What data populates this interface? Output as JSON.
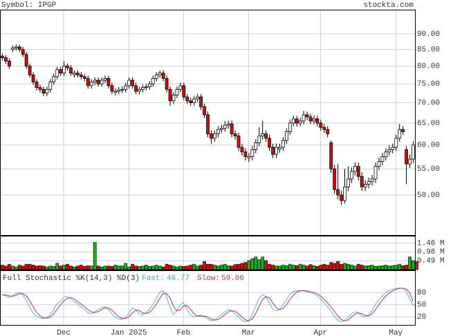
{
  "header": {
    "symbol": "Symbol: IPGP",
    "site": "stockta.com"
  },
  "chart_data": [
    {
      "type": "candlestick",
      "ylog": true,
      "grid": true,
      "up_color": "#ffffff",
      "down_color": "#cc1111",
      "ylim": [
        43.2,
        98.3
      ],
      "yticks": [
        {
          "value": 50,
          "label": "50.00"
        },
        {
          "value": 55,
          "label": "55.00"
        },
        {
          "value": 60,
          "label": "60.00"
        },
        {
          "value": 65,
          "label": "65.00"
        },
        {
          "value": 70,
          "label": "70.00"
        },
        {
          "value": 75,
          "label": "75.00"
        },
        {
          "value": 80,
          "label": "80.00"
        },
        {
          "value": 85,
          "label": "85.00"
        },
        {
          "value": 90,
          "label": "90.00"
        }
      ],
      "candles": [
        [
          83,
          83.8,
          81.7,
          82.5
        ],
        [
          82.5,
          83.3,
          80.7,
          81.5
        ],
        [
          81.5,
          82.3,
          79.2,
          80
        ],
        [
          85,
          86.3,
          84.2,
          85.5
        ],
        [
          85.5,
          86.6,
          84.7,
          85.8
        ],
        [
          85.8,
          86.6,
          84.2,
          85
        ],
        [
          85,
          85.8,
          82.7,
          83.5
        ],
        [
          83.5,
          84.3,
          79.2,
          80
        ],
        [
          80,
          80.8,
          76.7,
          77.5
        ],
        [
          77.5,
          78.3,
          74.7,
          75.5
        ],
        [
          75.5,
          76.3,
          73.2,
          74
        ],
        [
          74,
          74.8,
          72.7,
          73.5
        ],
        [
          73.5,
          74.3,
          71.7,
          72.5
        ],
        [
          72.5,
          74.3,
          71.7,
          73.5
        ],
        [
          73.5,
          76.3,
          72.7,
          75.5
        ],
        [
          75.5,
          77.8,
          74.7,
          77
        ],
        [
          77,
          79.8,
          76.2,
          79
        ],
        [
          79,
          79.8,
          77.2,
          78
        ],
        [
          78,
          81.5,
          77.2,
          80
        ],
        [
          80,
          80.8,
          78.7,
          79.5
        ],
        [
          79.5,
          80.3,
          77.2,
          78
        ],
        [
          77.6,
          78.8,
          76.8,
          78
        ],
        [
          78,
          78.8,
          76.7,
          77.5
        ],
        [
          77.5,
          78.3,
          76.2,
          77
        ],
        [
          77,
          77.8,
          75.7,
          76.5
        ],
        [
          76.5,
          77.3,
          73.7,
          74.5
        ],
        [
          74.5,
          76.3,
          73.7,
          75.5
        ],
        [
          75.5,
          76.8,
          74.7,
          76
        ],
        [
          76,
          76.8,
          74.2,
          75
        ],
        [
          75,
          76.8,
          74.2,
          76
        ],
        [
          76,
          77.3,
          75.2,
          76.5
        ],
        [
          76.5,
          77.3,
          73.7,
          74.5
        ],
        [
          74.5,
          75.3,
          72.2,
          73
        ],
        [
          72.7,
          73.8,
          71.9,
          73
        ],
        [
          73,
          74.1,
          72.2,
          73.3
        ],
        [
          73.3,
          74.3,
          72.5,
          73.5
        ],
        [
          73.5,
          75.3,
          72.7,
          74.5
        ],
        [
          74.5,
          76.8,
          73.7,
          76
        ],
        [
          76,
          76.8,
          73.7,
          74.5
        ],
        [
          74.5,
          75.3,
          72.2,
          73
        ],
        [
          73,
          74.3,
          72.2,
          73.5
        ],
        [
          73.5,
          74.8,
          72.7,
          74
        ],
        [
          74,
          75,
          73.2,
          74.2
        ],
        [
          74.2,
          75.8,
          73.4,
          75
        ],
        [
          75,
          77.3,
          74.2,
          76.5
        ],
        [
          76.5,
          78.3,
          75.7,
          77.5
        ],
        [
          77.5,
          78.8,
          76.7,
          78
        ],
        [
          78,
          78.8,
          75.7,
          76.5
        ],
        [
          76.5,
          77.3,
          72.7,
          73.5
        ],
        [
          73.5,
          74.3,
          69.2,
          70.5
        ],
        [
          70.5,
          72.8,
          69.7,
          72
        ],
        [
          72,
          74.3,
          71.2,
          73.5
        ],
        [
          73.5,
          75.3,
          72.7,
          74.5
        ],
        [
          74.5,
          75.3,
          70.7,
          71.5
        ],
        [
          71.5,
          72.3,
          69.7,
          70.5
        ],
        [
          70.5,
          71.3,
          69.2,
          70
        ],
        [
          70,
          71.8,
          69.2,
          71
        ],
        [
          71,
          72.3,
          70.2,
          71.5
        ],
        [
          71.5,
          72.3,
          68.2,
          69
        ],
        [
          69,
          69.8,
          66.2,
          67
        ],
        [
          67,
          67.8,
          61.7,
          62.5
        ],
        [
          62.5,
          63.3,
          60.2,
          61.5
        ],
        [
          61.5,
          63.3,
          60.7,
          62.5
        ],
        [
          62.5,
          64.3,
          61.7,
          63.5
        ],
        [
          63.5,
          64.6,
          62.7,
          63.8
        ],
        [
          63.8,
          65.5,
          63,
          64.5
        ],
        [
          64.5,
          65.6,
          63.7,
          64.8
        ],
        [
          64.8,
          65.6,
          61.7,
          62.5
        ],
        [
          62.5,
          63.3,
          61.2,
          62
        ],
        [
          62,
          62.8,
          58.7,
          59.5
        ],
        [
          59.5,
          60.3,
          57.7,
          58.5
        ],
        [
          58.5,
          59.3,
          56.7,
          57.5
        ],
        [
          57.2,
          58.3,
          56.4,
          57.5
        ],
        [
          57.5,
          59.8,
          56.7,
          59
        ],
        [
          59,
          61.3,
          58.2,
          60.5
        ],
        [
          60.5,
          64,
          59.7,
          62
        ],
        [
          62,
          65.5,
          61.2,
          62.5
        ],
        [
          62.5,
          63.3,
          60.7,
          61.5
        ],
        [
          61.5,
          62.3,
          58.7,
          59.5
        ],
        [
          59.5,
          60.3,
          57.2,
          58
        ],
        [
          58,
          60.3,
          57.2,
          59.5
        ],
        [
          59.1,
          60.3,
          58.3,
          59.5
        ],
        [
          59.5,
          61.8,
          58.7,
          61
        ],
        [
          61,
          63.8,
          60.2,
          63
        ],
        [
          63,
          65.8,
          62.2,
          65
        ],
        [
          65,
          66.8,
          64.2,
          66
        ],
        [
          66,
          66.8,
          64.2,
          65
        ],
        [
          65,
          66.3,
          64.2,
          65.5
        ],
        [
          65.5,
          68,
          64.7,
          67
        ],
        [
          67,
          67.8,
          65.7,
          66.5
        ],
        [
          66.5,
          67.3,
          64.7,
          65.5
        ],
        [
          65.5,
          66.8,
          64.7,
          66
        ],
        [
          66,
          66.8,
          64.2,
          65
        ],
        [
          65,
          65.8,
          63.2,
          64
        ],
        [
          64,
          64.8,
          62.7,
          63.5
        ],
        [
          63.5,
          64.3,
          61.7,
          62.5
        ],
        [
          60.5,
          61,
          54.2,
          55
        ],
        [
          55,
          55.8,
          50.2,
          51
        ],
        [
          51,
          56,
          49.2,
          50
        ],
        [
          50,
          50.8,
          48.2,
          49
        ],
        [
          49,
          55,
          48.5,
          51.5
        ],
        [
          51.5,
          55.5,
          50.7,
          53
        ],
        [
          53,
          55.3,
          52.2,
          54.5
        ],
        [
          54.5,
          56.3,
          53.7,
          55.5
        ],
        [
          55.5,
          56.3,
          52.7,
          53.5
        ],
        [
          53.5,
          54.3,
          50.7,
          51.5
        ],
        [
          51.5,
          52.8,
          50.7,
          52
        ],
        [
          52,
          53.3,
          51.2,
          52.5
        ],
        [
          52.5,
          53.8,
          51.7,
          53
        ],
        [
          53,
          56.3,
          52.2,
          55.5
        ],
        [
          55.5,
          57.3,
          54.7,
          56.5
        ],
        [
          56.5,
          58.3,
          55.7,
          57.5
        ],
        [
          57.5,
          59.3,
          56.7,
          58.5
        ],
        [
          58.5,
          60,
          57.7,
          59
        ],
        [
          59,
          60.3,
          58.2,
          59.5
        ],
        [
          59.5,
          62.3,
          58.7,
          61.5
        ],
        [
          61.5,
          64.8,
          60.7,
          63.5
        ],
        [
          63.5,
          64.3,
          62.2,
          63
        ],
        [
          59,
          59.8,
          52,
          56
        ],
        [
          56,
          58,
          55.2,
          57
        ],
        [
          57,
          60.8,
          56.2,
          60
        ]
      ]
    },
    {
      "type": "bar",
      "grid": true,
      "up_color": "#22aa22",
      "down_color": "#cc1111",
      "ylim": [
        0,
        1.87
      ],
      "yticks": [
        {
          "value": 0.49,
          "label": "0.49 M"
        },
        {
          "value": 0.98,
          "label": "0.98 M"
        },
        {
          "value": 1.46,
          "label": "1.46 M"
        }
      ],
      "values": [
        0.25,
        0.2,
        0.3,
        0.2,
        0.15,
        0.25,
        0.2,
        0.3,
        0.3,
        0.25,
        0.2,
        0.22,
        0.2,
        0.15,
        0.2,
        0.18,
        0.35,
        0.2,
        0.25,
        0.3,
        0.2,
        0.15,
        0.2,
        0.25,
        0.18,
        0.22,
        0.2,
        1.5,
        0.2,
        0.15,
        0.2,
        0.2,
        0.18,
        0.25,
        0.2,
        0.2,
        0.35,
        0.15,
        0.3,
        0.2,
        0.18,
        0.2,
        0.25,
        0.18,
        0.2,
        0.25,
        0.2,
        0.15,
        0.3,
        0.25,
        0.2,
        0.15,
        0.2,
        0.18,
        0.2,
        0.25,
        0.3,
        0.2,
        0.25,
        0.45,
        0.3,
        0.3,
        0.25,
        0.2,
        0.25,
        0.3,
        0.22,
        0.2,
        0.28,
        0.3,
        0.35,
        0.4,
        0.5,
        0.6,
        0.7,
        0.55,
        0.7,
        0.5,
        0.3,
        0.25,
        0.2,
        0.2,
        0.25,
        0.22,
        0.3,
        0.25,
        0.22,
        0.3,
        0.25,
        0.2,
        0.28,
        0.22,
        0.18,
        0.25,
        0.3,
        0.25,
        0.4,
        0.35,
        0.45,
        0.3,
        0.35,
        0.3,
        0.25,
        0.2,
        0.3,
        0.25,
        0.2,
        0.22,
        0.25,
        0.18,
        0.2,
        0.22,
        0.25,
        0.2,
        0.22,
        0.25,
        0.3,
        0.22,
        0.25,
        0.7,
        0.5,
        0.45
      ]
    },
    {
      "type": "line",
      "grid": true,
      "title": "Full Stochastic %K(14,3) %D(3)",
      "fast_label": "Fast:",
      "fast": 46.77,
      "slow_label": "Slow:",
      "slow": 59.06,
      "ylim": [
        0,
        135
      ],
      "yticks": [
        20,
        50,
        80
      ],
      "xticks": [
        {
          "value": 18,
          "label": "Dec"
        },
        {
          "value": 37,
          "label": "Jan 2025"
        },
        {
          "value": 53,
          "label": "Feb"
        },
        {
          "value": 72,
          "label": "Mar"
        },
        {
          "value": 93,
          "label": "Apr"
        },
        {
          "value": 115,
          "label": "May"
        }
      ],
      "series": [
        {
          "color": "#55bbcc",
          "values": [
            75,
            72,
            68,
            72,
            78,
            80,
            75,
            62,
            45,
            30,
            22,
            18,
            15,
            18,
            25,
            38,
            52,
            58,
            68,
            70,
            65,
            58,
            52,
            45,
            40,
            30,
            28,
            32,
            38,
            42,
            45,
            38,
            28,
            20,
            15,
            14,
            18,
            28,
            42,
            38,
            28,
            25,
            30,
            38,
            50,
            65,
            80,
            85,
            70,
            45,
            25,
            35,
            50,
            55,
            38,
            25,
            20,
            22,
            25,
            20,
            15,
            10,
            12,
            18,
            25,
            32,
            38,
            35,
            28,
            20,
            12,
            8,
            10,
            25,
            45,
            65,
            75,
            70,
            55,
            40,
            35,
            38,
            48,
            62,
            75,
            82,
            85,
            85,
            84,
            82,
            80,
            78,
            72,
            65,
            55,
            45,
            35,
            22,
            12,
            8,
            10,
            18,
            28,
            32,
            30,
            22,
            20,
            25,
            35,
            50,
            62,
            72,
            80,
            85,
            88,
            90,
            92,
            90,
            85,
            65,
            50,
            46.77
          ]
        },
        {
          "color": "#aa3366",
          "values": [
            75,
            74,
            72,
            71,
            73,
            77,
            78,
            72,
            61,
            46,
            32,
            23,
            18,
            17,
            19,
            27,
            38,
            49,
            59,
            65,
            68,
            64,
            58,
            52,
            46,
            38,
            33,
            30,
            33,
            37,
            42,
            42,
            37,
            29,
            21,
            16,
            16,
            20,
            29,
            36,
            36,
            30,
            28,
            31,
            39,
            51,
            65,
            77,
            78,
            67,
            47,
            35,
            37,
            47,
            48,
            39,
            28,
            22,
            22,
            22,
            20,
            15,
            12,
            13,
            18,
            25,
            32,
            35,
            34,
            28,
            20,
            13,
            10,
            14,
            27,
            45,
            62,
            70,
            67,
            55,
            43,
            38,
            40,
            49,
            62,
            73,
            81,
            84,
            85,
            84,
            82,
            80,
            77,
            72,
            64,
            55,
            45,
            34,
            23,
            14,
            10,
            12,
            19,
            26,
            30,
            28,
            24,
            22,
            27,
            37,
            49,
            61,
            71,
            79,
            84,
            88,
            90,
            91,
            89,
            80,
            59.06
          ]
        }
      ]
    }
  ]
}
